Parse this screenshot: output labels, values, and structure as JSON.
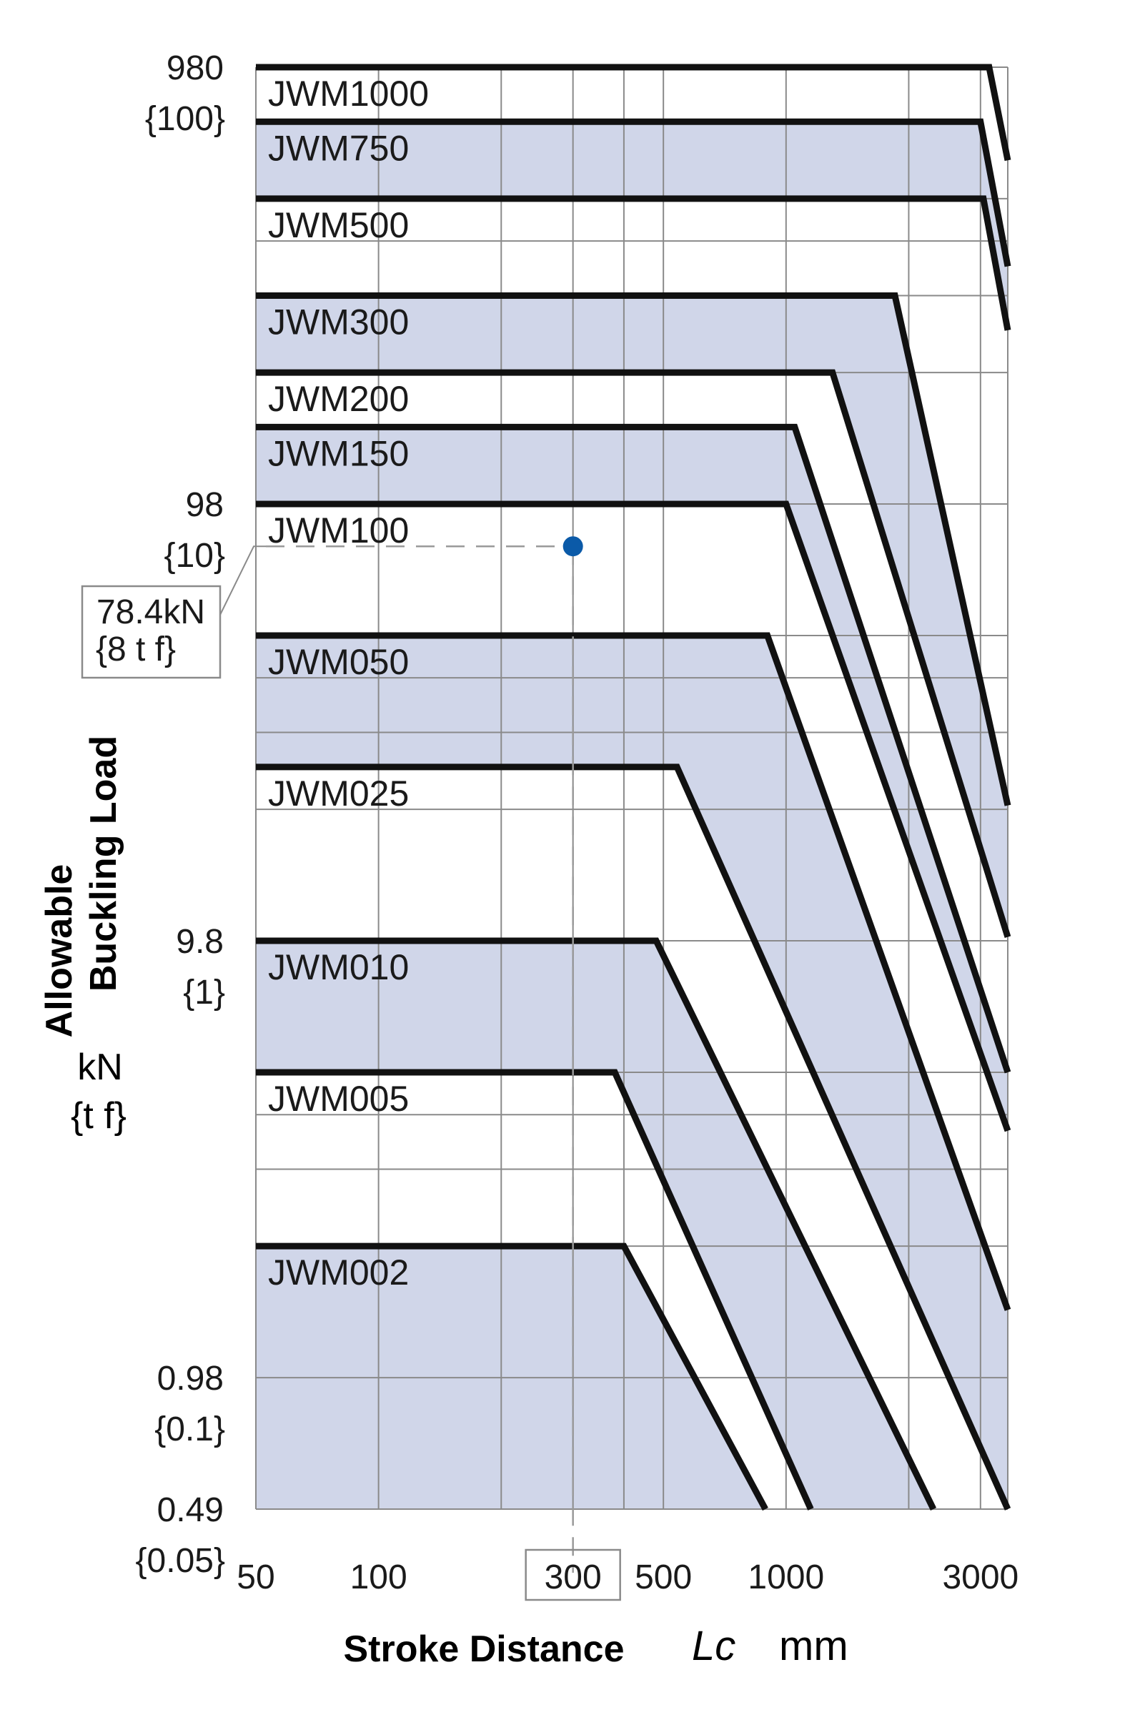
{
  "chart_data": {
    "type": "line",
    "title": "",
    "xlabel": "Stroke Distance",
    "xlabel_symbol": "Lc",
    "xlabel_unit": "mm",
    "ylabel_line1": "Allowable",
    "ylabel_line2": "Buckling Load",
    "yunit_line1": "kN",
    "yunit_line2": "{t f}",
    "x_scale": "log",
    "y_scale": "log",
    "xlim": [
      50,
      3500
    ],
    "ylim": [
      0.49,
      980
    ],
    "grid": true,
    "x_gridlines": [
      50,
      100,
      200,
      300,
      400,
      500,
      1000,
      2000,
      3000
    ],
    "y_gridlines": [
      0.49,
      0.98,
      1.96,
      2.94,
      3.92,
      4.9,
      9.8,
      19.6,
      29.4,
      39.2,
      49,
      98,
      196,
      294,
      392,
      490,
      980
    ],
    "x_ticks": [
      {
        "value": 50,
        "label": "50"
      },
      {
        "value": 100,
        "label": "100"
      },
      {
        "value": 300,
        "label": "300"
      },
      {
        "value": 500,
        "label": "500"
      },
      {
        "value": 1000,
        "label": "1000"
      },
      {
        "value": 3000,
        "label": "3000"
      }
    ],
    "y_ticks": [
      {
        "value": 980,
        "label": "980",
        "sub": "{100}"
      },
      {
        "value": 98,
        "label": "98",
        "sub": "{10}"
      },
      {
        "value": 9.8,
        "label": "9.8",
        "sub": "{1}"
      },
      {
        "value": 0.98,
        "label": "0.98",
        "sub": "{0.1}"
      },
      {
        "value": 0.49,
        "label": "0.49",
        "sub": "{0.05}"
      }
    ],
    "series": [
      {
        "name": "JWM1000",
        "plateau": 980,
        "knee_x": 3150,
        "end": [
          3500,
          600
        ],
        "shaded": false
      },
      {
        "name": "JWM750",
        "plateau": 735,
        "knee_x": 3000,
        "end": [
          3500,
          343
        ],
        "shaded": true
      },
      {
        "name": "JWM500",
        "plateau": 490,
        "knee_x": 3050,
        "end": [
          3500,
          245
        ],
        "shaded": false
      },
      {
        "name": "JWM300",
        "plateau": 294,
        "knee_x": 1850,
        "end": [
          3500,
          20
        ],
        "shaded": true
      },
      {
        "name": "JWM200",
        "plateau": 196,
        "knee_x": 1300,
        "end": [
          3500,
          10
        ],
        "shaded": false
      },
      {
        "name": "JWM150",
        "plateau": 147,
        "knee_x": 1050,
        "end": [
          3500,
          4.9
        ],
        "shaded": true
      },
      {
        "name": "JWM100",
        "plateau": 98,
        "knee_x": 1000,
        "end": [
          3500,
          3.6
        ],
        "shaded": false
      },
      {
        "name": "JWM050",
        "plateau": 49,
        "knee_x": 900,
        "end": [
          3500,
          1.4
        ],
        "shaded": true
      },
      {
        "name": "JWM025",
        "plateau": 24.5,
        "knee_x": 540,
        "end": [
          3500,
          0.49
        ],
        "shaded": false
      },
      {
        "name": "JWM010",
        "plateau": 9.8,
        "knee_x": 480,
        "end": [
          2300,
          0.49
        ],
        "shaded": true
      },
      {
        "name": "JWM005",
        "plateau": 4.9,
        "knee_x": 380,
        "end": [
          1150,
          0.49
        ],
        "shaded": false
      },
      {
        "name": "JWM002",
        "plateau": 1.96,
        "knee_x": 400,
        "end": [
          890,
          0.49
        ],
        "shaded": true
      }
    ],
    "annotation": {
      "point_x": 300,
      "point_y": 78.4,
      "label_line1": "78.4kN",
      "label_line2": "{8 t f}",
      "point_color": "#0b5aa8"
    },
    "highlight_tick": "300",
    "colors": {
      "fill": "#d0d6e9",
      "line": "#111111",
      "grid": "#8a8a8a"
    }
  }
}
